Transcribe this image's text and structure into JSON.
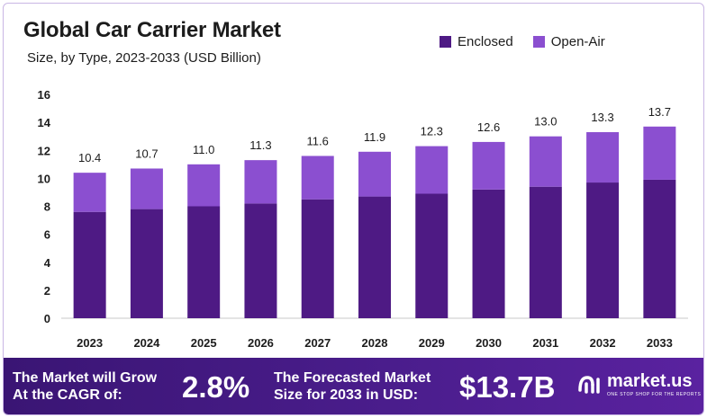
{
  "title": "Global Car Carrier Market",
  "subtitle": "Size, by Type, 2023-2033 (USD Billion)",
  "colors": {
    "enclosed": "#4e1a84",
    "open_air": "#8b4fd0",
    "footer": "#3f1880"
  },
  "legend": [
    {
      "label": "Enclosed",
      "color": "#4e1a84"
    },
    {
      "label": "Open-Air",
      "color": "#8b4fd0"
    }
  ],
  "chart_data": {
    "type": "bar",
    "stacked": true,
    "categories": [
      "2023",
      "2024",
      "2025",
      "2026",
      "2027",
      "2028",
      "2029",
      "2030",
      "2031",
      "2032",
      "2033"
    ],
    "series": [
      {
        "name": "Enclosed",
        "values": [
          7.6,
          7.8,
          8.0,
          8.2,
          8.5,
          8.7,
          8.9,
          9.2,
          9.4,
          9.7,
          9.9
        ]
      },
      {
        "name": "Open-Air",
        "values": [
          2.8,
          2.9,
          3.0,
          3.1,
          3.1,
          3.2,
          3.4,
          3.4,
          3.6,
          3.6,
          3.8
        ]
      }
    ],
    "totals": [
      "10.4",
      "10.7",
      "11.0",
      "11.3",
      "11.6",
      "11.9",
      "12.3",
      "12.6",
      "13.0",
      "13.3",
      "13.7"
    ],
    "ylim": [
      0,
      16
    ],
    "yticks": [
      0,
      2,
      4,
      6,
      8,
      10,
      12,
      14,
      16
    ],
    "xlabel": "",
    "ylabel": ""
  },
  "footer": {
    "cagr_text": "The Market will Grow At the CAGR of:",
    "cagr_value": "2.8%",
    "forecast_text": "The Forecasted Market Size for 2033 in USD:",
    "forecast_value": "$13.7B",
    "brand_name": "market.us",
    "brand_tagline": "ONE STOP SHOP FOR THE REPORTS",
    "brand_icon": "market-us-logo-icon"
  }
}
